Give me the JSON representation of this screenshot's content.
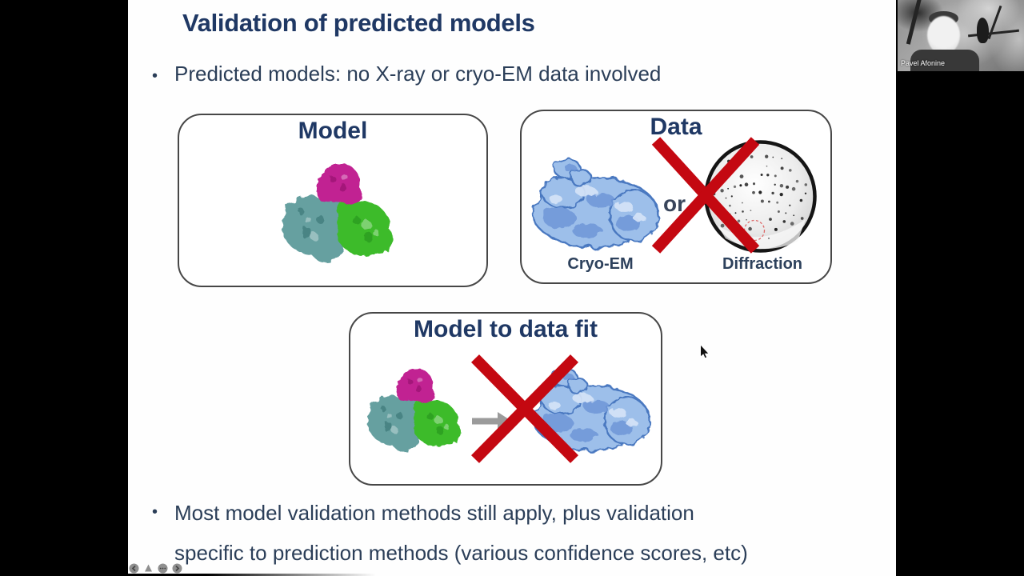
{
  "slide": {
    "title": "Validation of predicted models",
    "bullets": {
      "marker": "•",
      "b1": "Predicted models: no X-ray or cryo-EM data involved",
      "b2_line1": "Most model validation methods still apply, plus validation",
      "b2_line2": "specific to prediction methods (various confidence scores, etc)"
    },
    "panels": {
      "model": {
        "title": "Model"
      },
      "data": {
        "title": "Data",
        "conjunction": "or",
        "cryoem_caption": "Cryo-EM",
        "diffraction_caption": "Diffraction"
      },
      "fit": {
        "title": "Model to data fit"
      }
    }
  },
  "meeting": {
    "participant_name": "Pavel Afonine"
  },
  "toolbar": {
    "icons": [
      "previous-slide",
      "annotation-pen",
      "more-options",
      "next-slide"
    ]
  },
  "colors": {
    "title_navy": "#1f3864",
    "body_text": "#2b3e58",
    "caption_text": "#2d415c",
    "cross_red": "#c40811",
    "density_blue": "#9dbfea",
    "protein_magenta": "#c12392",
    "protein_teal": "#66a0a0",
    "protein_green": "#3ebb2c",
    "panel_border": "#474747"
  }
}
